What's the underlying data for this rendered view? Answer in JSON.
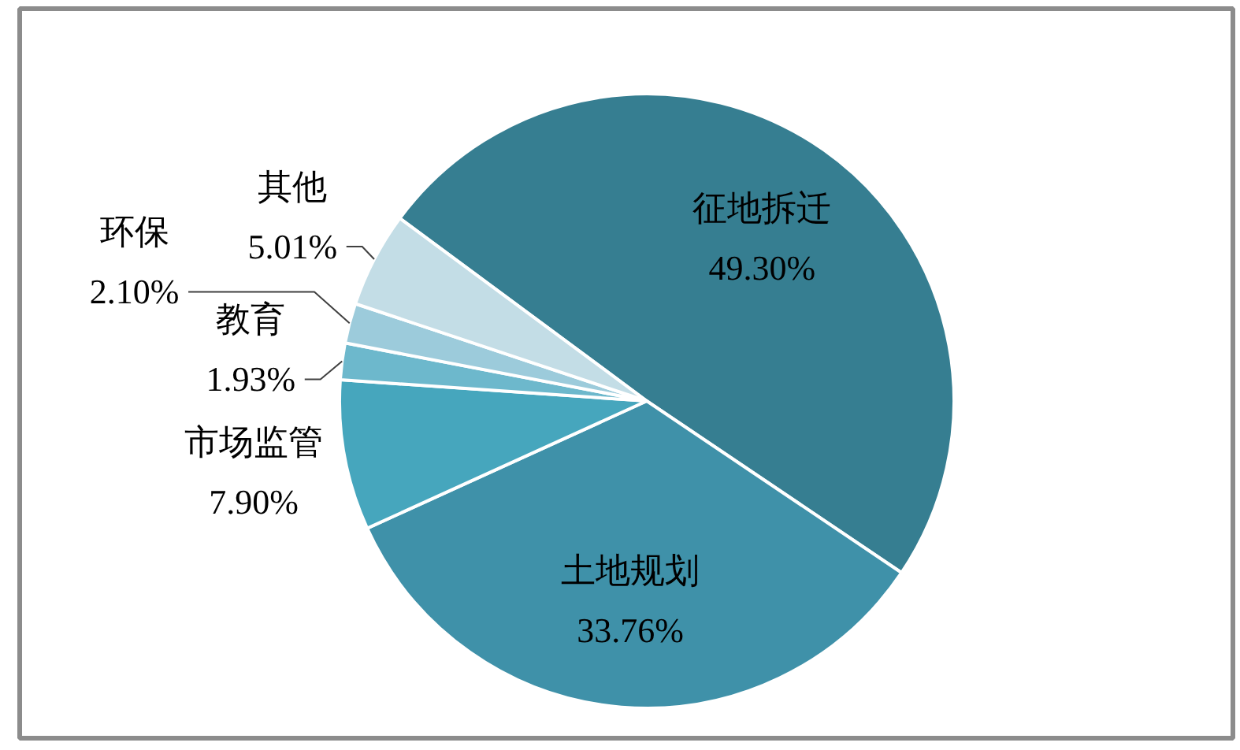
{
  "chart_data": {
    "type": "pie",
    "categories": [
      "征地拆迁",
      "土地规划",
      "市场监管",
      "教育",
      "环保",
      "其他"
    ],
    "values": [
      49.3,
      33.76,
      7.9,
      1.93,
      2.1,
      5.01
    ],
    "colors": [
      "#367e91",
      "#3f91a9",
      "#46a6bd",
      "#6db8cc",
      "#9ccbdb",
      "#c3dde6"
    ],
    "value_labels": [
      "49.30%",
      "33.76%",
      "7.90%",
      "1.93%",
      "2.10%",
      "5.01%"
    ]
  }
}
